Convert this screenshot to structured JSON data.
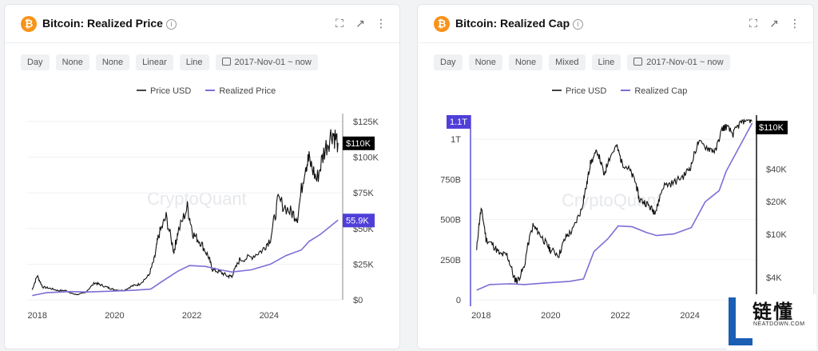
{
  "left": {
    "title": "Bitcoin: Realized Price",
    "options": [
      "Day",
      "None",
      "None",
      "Linear",
      "Line"
    ],
    "date_range": "2017-Nov-01 ~ now",
    "legend": [
      "Price USD",
      "Realized Price"
    ],
    "watermark": "CryptoQuant",
    "colors": {
      "price": "#111111",
      "realized": "#7b6fd6",
      "marker_price": "#000000",
      "marker_realized": "#4f3fd8"
    }
  },
  "right": {
    "title": "Bitcoin: Realized Cap",
    "options": [
      "Day",
      "None",
      "None",
      "Mixed",
      "Line"
    ],
    "date_range": "2017-Nov-01 ~ now",
    "legend": [
      "Price USD",
      "Realized Cap"
    ],
    "watermark": "CryptoQuant",
    "colors": {
      "price": "#111111",
      "realized": "#7b6fd6",
      "marker_price": "#000000",
      "marker_realized": "#4f3fd8"
    }
  },
  "logo": {
    "cn": "链懂",
    "en": "NEATDOWN.COM"
  },
  "chart_data": [
    {
      "type": "line",
      "title": "Bitcoin: Realized Price",
      "x_ticks": [
        "2018",
        "2020",
        "2022",
        "2024"
      ],
      "y_ticks": [
        "$0",
        "$25K",
        "$50K",
        "$75K",
        "$100K",
        "$125K"
      ],
      "ylim": [
        0,
        125000
      ],
      "current_labels": {
        "price": "$110K",
        "realized": "55.9K"
      },
      "series": [
        {
          "name": "Price USD",
          "x": [
            2017.83,
            2017.96,
            2018.1,
            2018.3,
            2018.5,
            2018.7,
            2018.9,
            2019.0,
            2019.2,
            2019.45,
            2019.6,
            2019.8,
            2019.95,
            2020.2,
            2020.4,
            2020.6,
            2020.85,
            2021.0,
            2021.1,
            2021.3,
            2021.5,
            2021.6,
            2021.85,
            2022.0,
            2022.2,
            2022.4,
            2022.5,
            2022.7,
            2022.9,
            2023.0,
            2023.2,
            2023.5,
            2023.8,
            2024.0,
            2024.2,
            2024.5,
            2024.7,
            2024.9,
            2025.0,
            2025.2,
            2025.4,
            2025.6,
            2025.75
          ],
          "values": [
            7000,
            17000,
            9000,
            8000,
            6500,
            6500,
            4000,
            3700,
            5000,
            12000,
            10500,
            8500,
            7200,
            6500,
            9500,
            11000,
            17000,
            29000,
            45000,
            58000,
            34000,
            47000,
            65000,
            46000,
            40000,
            30000,
            21000,
            19500,
            16500,
            16800,
            28000,
            30000,
            35000,
            43000,
            70000,
            62000,
            58000,
            95000,
            98000,
            84000,
            105000,
            118000,
            110000
          ]
        },
        {
          "name": "Realized Price",
          "x": [
            2017.83,
            2018.2,
            2018.8,
            2019.2,
            2019.8,
            2020.5,
            2020.9,
            2021.2,
            2021.6,
            2021.9,
            2022.3,
            2022.7,
            2023.0,
            2023.5,
            2024.0,
            2024.4,
            2024.8,
            2025.0,
            2025.3,
            2025.75
          ],
          "values": [
            3000,
            5000,
            5800,
            5500,
            6000,
            6800,
            7500,
            13000,
            20000,
            24000,
            23500,
            21000,
            19500,
            21000,
            25000,
            31000,
            35000,
            41000,
            46000,
            55900
          ]
        }
      ]
    },
    {
      "type": "line",
      "title": "Bitcoin: Realized Cap",
      "x_ticks": [
        "2018",
        "2020",
        "2022",
        "2024"
      ],
      "y_ticks_left": [
        "0",
        "250B",
        "500B",
        "750B",
        "1T"
      ],
      "y_ticks_right": [
        "$4K",
        "$10K",
        "$20K",
        "$40K"
      ],
      "ylim_left": [
        0,
        1100000000000
      ],
      "current_labels": {
        "price": "$110K",
        "realized": "1.1T"
      },
      "series": [
        {
          "name": "Price USD",
          "x": [
            2017.83,
            2017.96,
            2018.1,
            2018.3,
            2018.5,
            2018.7,
            2018.9,
            2019.0,
            2019.2,
            2019.45,
            2019.6,
            2019.8,
            2019.95,
            2020.2,
            2020.4,
            2020.6,
            2020.85,
            2021.0,
            2021.1,
            2021.3,
            2021.5,
            2021.6,
            2021.85,
            2022.0,
            2022.2,
            2022.4,
            2022.5,
            2022.7,
            2022.9,
            2023.0,
            2023.2,
            2023.5,
            2023.8,
            2024.0,
            2024.2,
            2024.5,
            2024.7,
            2024.9,
            2025.0,
            2025.2,
            2025.4,
            2025.6,
            2025.75
          ],
          "values": [
            7000,
            17000,
            9000,
            8000,
            6500,
            6500,
            4000,
            3700,
            5000,
            12000,
            10500,
            8500,
            7200,
            6500,
            9500,
            11000,
            17000,
            29000,
            45000,
            58000,
            34000,
            47000,
            65000,
            46000,
            40000,
            30000,
            21000,
            19500,
            16500,
            16800,
            28000,
            30000,
            35000,
            43000,
            70000,
            62000,
            58000,
            95000,
            98000,
            84000,
            105000,
            118000,
            110000
          ]
        },
        {
          "name": "Realized Cap",
          "x": [
            2017.83,
            2018.2,
            2018.8,
            2019.2,
            2019.8,
            2020.5,
            2020.9,
            2021.2,
            2021.6,
            2021.9,
            2022.3,
            2022.7,
            2023.0,
            2023.5,
            2024.0,
            2024.4,
            2024.8,
            2025.0,
            2025.3,
            2025.75
          ],
          "values": [
            60000000000,
            95000000000,
            100000000000,
            95000000000,
            105000000000,
            115000000000,
            130000000000,
            300000000000,
            380000000000,
            460000000000,
            455000000000,
            420000000000,
            400000000000,
            410000000000,
            450000000000,
            610000000000,
            680000000000,
            800000000000,
            920000000000,
            1100000000000
          ]
        }
      ]
    }
  ]
}
